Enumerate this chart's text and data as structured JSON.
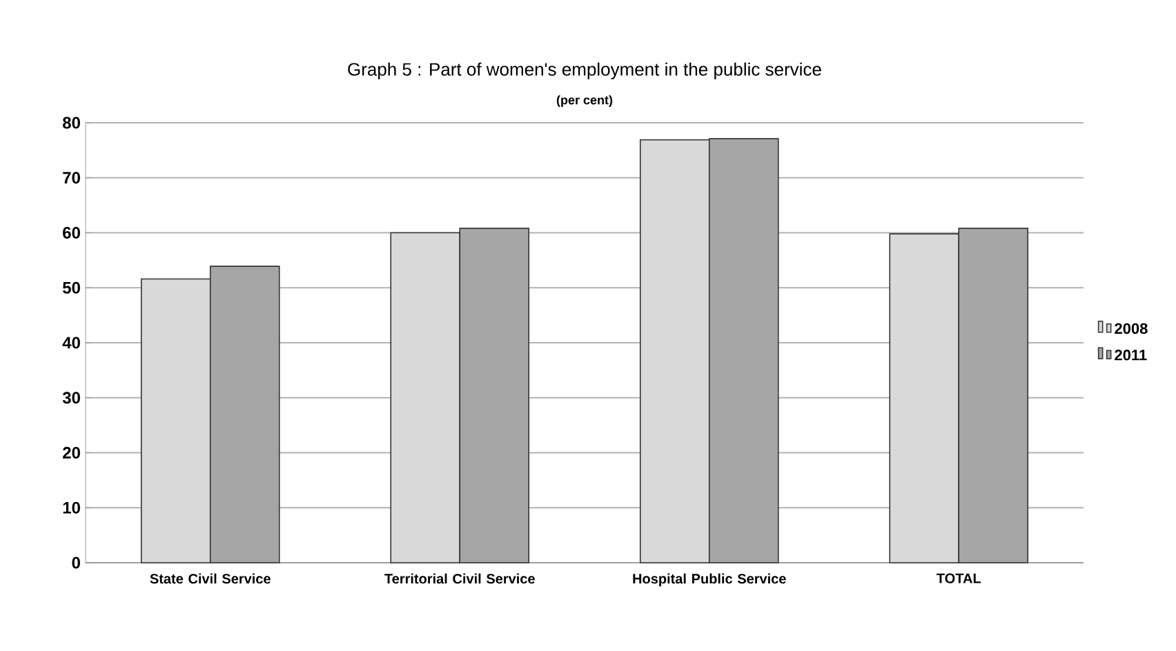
{
  "chart_data": {
    "type": "bar",
    "title": "Graph 5 : Part of women's employment in the public service",
    "subtitle": "(per cent)",
    "categories": [
      "State Civil Service",
      "Territorial Civil Service",
      "Hospital Public Service",
      "TOTAL"
    ],
    "series": [
      {
        "name": "2008",
        "color": "#d9d9d9",
        "values": [
          51.6,
          60.0,
          76.9,
          59.8
        ]
      },
      {
        "name": "2011",
        "color": "#a6a6a6",
        "values": [
          53.9,
          60.8,
          77.1,
          60.8
        ]
      }
    ],
    "ylim": [
      0,
      80
    ],
    "yticks": [
      0,
      10,
      20,
      30,
      40,
      50,
      60,
      70,
      80
    ],
    "grid": "y",
    "legend": "right"
  }
}
